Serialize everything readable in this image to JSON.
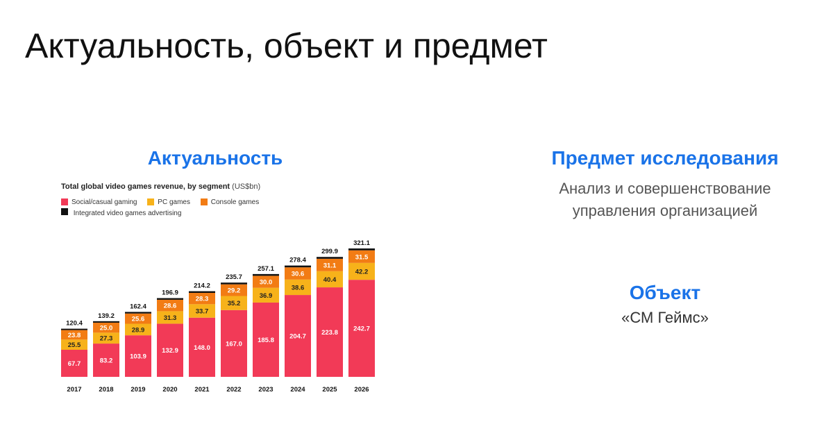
{
  "slide": {
    "title": "Актуальность, объект и предмет"
  },
  "relevance": {
    "heading": "Актуальность"
  },
  "subject": {
    "heading": "Предмет исследования",
    "line1": "Анализ и совершенствование",
    "line2": "управления организацией"
  },
  "object": {
    "heading": "Объект",
    "text": "«СМ Геймс»"
  },
  "colors": {
    "accent": "#1a73e8",
    "social": "#f23a57",
    "pc": "#f7b21a",
    "console": "#f27c14",
    "advertising": "#111111"
  },
  "chart_data": {
    "type": "bar",
    "stacked": true,
    "title": "Total global video games revenue, by segment",
    "title_unit": "(US$bn)",
    "categories": [
      "2017",
      "2018",
      "2019",
      "2020",
      "2021",
      "2022",
      "2023",
      "2024",
      "2025",
      "2026"
    ],
    "series": [
      {
        "name": "Social/casual gaming",
        "color": "#f23a57",
        "values": [
          67.7,
          83.2,
          103.9,
          132.9,
          148.0,
          167.0,
          185.8,
          204.7,
          223.8,
          242.7
        ]
      },
      {
        "name": "PC games",
        "color": "#f7b21a",
        "values": [
          25.5,
          27.3,
          28.9,
          31.3,
          33.7,
          35.2,
          36.9,
          38.6,
          40.4,
          42.2
        ]
      },
      {
        "name": "Console games",
        "color": "#f27c14",
        "values": [
          23.8,
          25.0,
          25.6,
          28.6,
          28.3,
          29.2,
          30.0,
          30.6,
          31.1,
          31.5
        ]
      },
      {
        "name": "Integrated video games advertising",
        "color": "#111111",
        "values": [
          3.4,
          3.7,
          4.0,
          4.1,
          4.2,
          4.3,
          4.4,
          4.5,
          4.6,
          4.7
        ]
      }
    ],
    "totals": [
      "120.4",
      "139.2",
      "162.4",
      "196.9",
      "214.2",
      "235.7",
      "257.1",
      "278.4",
      "299.9",
      "321.1"
    ],
    "labels": {
      "social": [
        "67.7",
        "83.2",
        "103.9",
        "132.9",
        "148.0",
        "167.0",
        "185.8",
        "204.7",
        "223.8",
        "242.7"
      ],
      "pc": [
        "25.5",
        "27.3",
        "28.9",
        "31.3",
        "33.7",
        "35.2",
        "36.9",
        "38.6",
        "40.4",
        "42.2"
      ],
      "console": [
        "23.8",
        "25.0",
        "25.6",
        "28.6",
        "28.3",
        "29.2",
        "30.0",
        "30.6",
        "31.1",
        "31.5"
      ]
    },
    "ylim": [
      0,
      321.1
    ],
    "grid": false,
    "legend_position": "top-left"
  }
}
